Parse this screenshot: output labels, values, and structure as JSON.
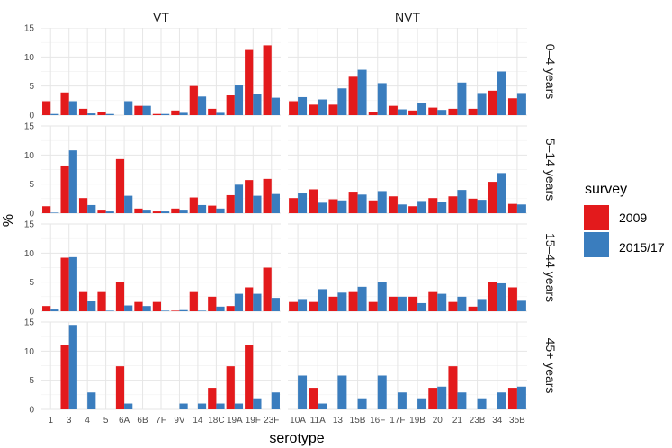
{
  "chart_data": {
    "type": "bar",
    "xlabel": "serotype",
    "ylabel": "%",
    "ylim": [
      0,
      15
    ],
    "yticks": [
      0,
      5,
      10,
      15
    ],
    "columns": [
      {
        "title": "VT",
        "categories": [
          "1",
          "3",
          "4",
          "5",
          "6A",
          "6B",
          "7F",
          "9V",
          "14",
          "18C",
          "19A",
          "19F",
          "23F"
        ]
      },
      {
        "title": "NVT",
        "categories": [
          "10A",
          "11A",
          "13",
          "15B",
          "16F",
          "17F",
          "19B",
          "20",
          "21",
          "23B",
          "34",
          "35B"
        ]
      }
    ],
    "rows": [
      "0–4 years",
      "5–14 years",
      "15–44 years",
      "45+ years"
    ],
    "legend": {
      "title": "survey",
      "entries": [
        {
          "label": "2009",
          "color": "#E31A1C"
        },
        {
          "label": "2015/17",
          "color": "#3A7DBE"
        }
      ]
    },
    "series": [
      {
        "name": "2009",
        "values": {
          "0–4 years": {
            "VT": [
              2.4,
              3.9,
              1.1,
              0.6,
              0,
              1.6,
              0.2,
              0.8,
              5.0,
              1.1,
              3.4,
              11.2,
              12.0
            ],
            "NVT": [
              2.4,
              1.8,
              1.8,
              6.6,
              0.6,
              1.6,
              0.8,
              1.3,
              1.1,
              1.1,
              4.2,
              2.9
            ]
          },
          "5–14 years": {
            "VT": [
              1.2,
              8.2,
              2.6,
              0.6,
              9.3,
              0.8,
              0.3,
              0.8,
              2.7,
              1.3,
              3.1,
              5.7,
              5.9
            ],
            "NVT": [
              2.6,
              4.1,
              2.4,
              3.7,
              2.2,
              2.9,
              1.2,
              2.6,
              2.9,
              2.5,
              5.4,
              1.6
            ]
          },
          "15–44 years": {
            "VT": [
              0.9,
              9.2,
              3.3,
              3.3,
              5.0,
              1.6,
              1.6,
              0.1,
              3.3,
              2.5,
              0.9,
              4.1,
              7.5
            ],
            "NVT": [
              1.6,
              1.6,
              2.5,
              3.3,
              1.6,
              2.5,
              2.5,
              3.3,
              1.6,
              0.8,
              5.0,
              4.1
            ]
          },
          "45+ years": {
            "VT": [
              0,
              11.1,
              0,
              0,
              7.4,
              0,
              0,
              0,
              0,
              3.7,
              7.4,
              11.1,
              0
            ],
            "NVT": [
              0,
              3.7,
              0,
              0,
              0,
              0,
              0,
              3.7,
              7.4,
              0,
              0,
              3.7
            ]
          }
        }
      },
      {
        "name": "2015/17",
        "values": {
          "0–4 years": {
            "VT": [
              0.2,
              2.4,
              0.3,
              0.2,
              2.4,
              1.6,
              0.2,
              0.4,
              3.2,
              0.4,
              5.1,
              3.6,
              3.0
            ],
            "NVT": [
              3.1,
              2.7,
              4.6,
              7.8,
              5.5,
              1.0,
              2.1,
              0.9,
              5.6,
              3.8,
              7.5,
              3.8
            ]
          },
          "5–14 years": {
            "VT": [
              0.1,
              10.8,
              1.4,
              0.3,
              3.0,
              0.6,
              0.3,
              0.6,
              1.4,
              0.8,
              4.9,
              3.0,
              3.3
            ],
            "NVT": [
              3.4,
              1.8,
              2.2,
              3.2,
              3.8,
              1.5,
              2.1,
              1.9,
              4.0,
              2.3,
              6.9,
              1.5
            ]
          },
          "15–44 years": {
            "VT": [
              0.3,
              9.3,
              1.7,
              0.1,
              1.0,
              0.9,
              0.1,
              0.2,
              0.1,
              0.8,
              3.0,
              3.0,
              2.3
            ],
            "NVT": [
              2.1,
              3.8,
              3.2,
              4.2,
              5.1,
              2.5,
              1.4,
              3.0,
              2.5,
              2.1,
              4.8,
              1.8
            ]
          },
          "45+ years": {
            "VT": [
              0,
              14.5,
              2.9,
              0,
              1.0,
              0,
              0,
              1.0,
              1.0,
              1.0,
              1.0,
              1.9,
              2.9
            ],
            "NVT": [
              5.8,
              1.0,
              5.8,
              1.9,
              5.8,
              2.9,
              1.9,
              3.9,
              2.9,
              1.9,
              2.9,
              3.9
            ]
          }
        }
      }
    ]
  }
}
